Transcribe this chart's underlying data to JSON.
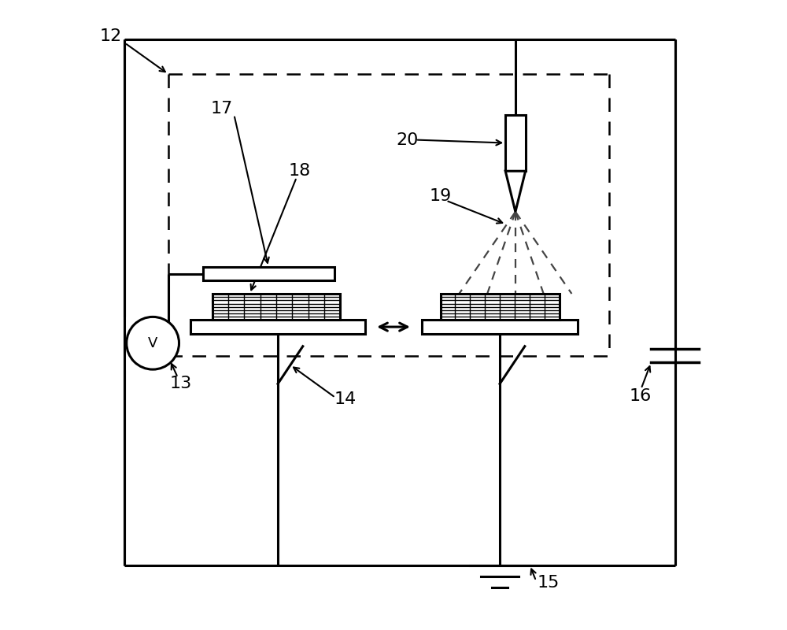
{
  "bg_color": "#ffffff",
  "line_color": "#000000",
  "figsize": [
    10.0,
    8.0
  ],
  "dpi": 100,
  "lw_main": 2.2,
  "lw_dashed": 1.8,
  "label_fontsize": 16
}
